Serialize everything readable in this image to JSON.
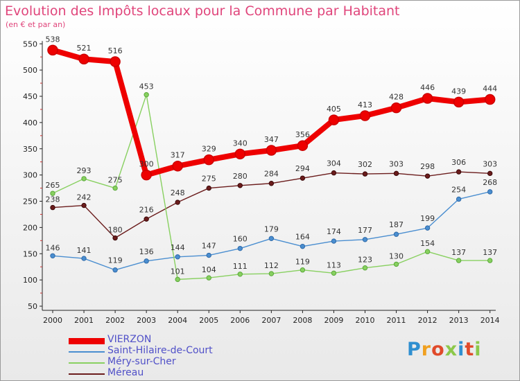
{
  "chart_data": {
    "type": "line",
    "title": "Evolution des Impôts locaux pour la Commune par Habitant",
    "subtitle": "(en € et par an)",
    "categories": [
      "2000",
      "2001",
      "2002",
      "2003",
      "2004",
      "2005",
      "2006",
      "2007",
      "2008",
      "2009",
      "2010",
      "2011",
      "2012",
      "2013",
      "2014"
    ],
    "ylim": [
      50,
      550
    ],
    "yticks": [
      50,
      100,
      150,
      200,
      250,
      300,
      350,
      400,
      450,
      500,
      550
    ],
    "grid": false,
    "legend_position": "bottom-left",
    "series": [
      {
        "name": "VIERZON",
        "color": "#ee0000",
        "values": [
          538,
          521,
          516,
          300,
          317,
          329,
          340,
          347,
          356,
          405,
          413,
          428,
          446,
          439,
          444
        ]
      },
      {
        "name": "Saint-Hilaire-de-Court",
        "color": "#4a8ed0",
        "values": [
          146,
          141,
          119,
          136,
          144,
          147,
          160,
          179,
          164,
          174,
          177,
          187,
          199,
          254,
          268
        ]
      },
      {
        "name": "Méry-sur-Cher",
        "color": "#88d060",
        "values": [
          265,
          293,
          275,
          453,
          101,
          104,
          111,
          112,
          119,
          113,
          123,
          130,
          154,
          137,
          137
        ]
      },
      {
        "name": "Méreau",
        "color": "#6b1c1c",
        "values": [
          238,
          242,
          180,
          216,
          248,
          275,
          280,
          284,
          294,
          304,
          302,
          303,
          298,
          306,
          303
        ]
      }
    ]
  },
  "logo": {
    "text": "Proxiti"
  }
}
